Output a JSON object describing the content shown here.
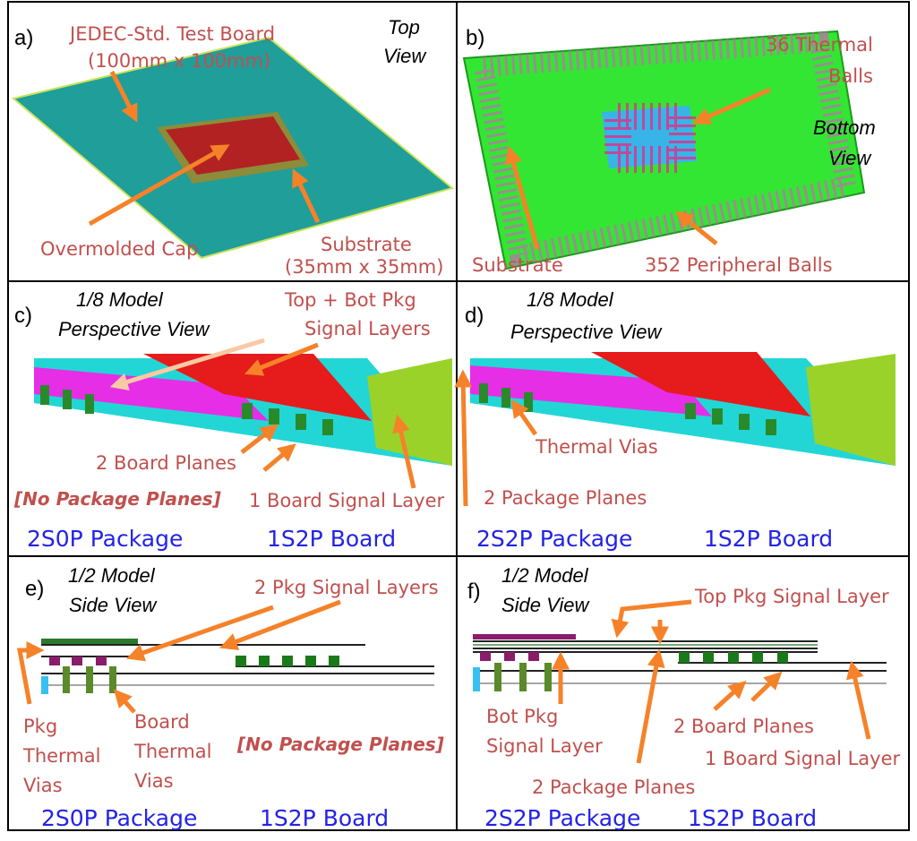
{
  "colors": {
    "label": "#c0504d",
    "blue_label": "#2323e6",
    "arrow": "#f58229",
    "board_teal": "#1f9e9a",
    "board_green": "#33e633",
    "cap_red": "#b22222"
  },
  "panel_a": {
    "tag": "a)",
    "title": "JEDEC-Std. Test Board",
    "title_size": "(100mm x 100mm)",
    "view": [
      "Top",
      "View"
    ],
    "cap_label": "Overmolded Cap",
    "substrate_label": "Substrate",
    "substrate_size": "(35mm x 35mm)"
  },
  "panel_b": {
    "tag": "b)",
    "thermal_balls": [
      "36 Thermal",
      "Balls"
    ],
    "view": [
      "Bottom",
      "View"
    ],
    "substrate_label": "Substrate",
    "peripheral_label": "352 Peripheral Balls"
  },
  "panel_c": {
    "tag": "c)",
    "model": [
      "1/8 Model",
      "Perspective View"
    ],
    "signal_layers": [
      "Top + Bot Pkg",
      "Signal Layers"
    ],
    "board_planes": "2 Board Planes",
    "no_planes": "[No Package Planes]",
    "board_signal": "1 Board Signal Layer",
    "package": "2S0P Package",
    "board": "1S2P Board"
  },
  "panel_d": {
    "tag": "d)",
    "model": [
      "1/8 Model",
      "Perspective View"
    ],
    "thermal_vias": "Thermal Vias",
    "package_planes": "2 Package Planes",
    "package": "2S2P Package",
    "board": "1S2P Board"
  },
  "panel_e": {
    "tag": "e)",
    "model": [
      "1/2 Model",
      "Side View"
    ],
    "signal_layers": "2 Pkg Signal Layers",
    "pkg_vias": [
      "Pkg",
      "Thermal",
      "Vias"
    ],
    "board_vias": [
      "Board",
      "Thermal",
      "Vias"
    ],
    "no_planes": "[No Package Planes]",
    "package": "2S0P Package",
    "board": "1S2P Board"
  },
  "panel_f": {
    "tag": "f)",
    "model": [
      "1/2 Model",
      "Side View"
    ],
    "top_signal": "Top  Pkg Signal Layer",
    "bot_signal": [
      "Bot  Pkg",
      "Signal Layer"
    ],
    "package_planes": "2 Package Planes",
    "board_planes": "2 Board Planes",
    "board_signal": "1 Board Signal Layer",
    "package": "2S2P Package",
    "board": "1S2P Board"
  }
}
